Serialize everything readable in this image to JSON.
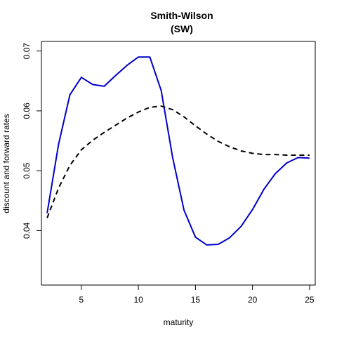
{
  "chart_data": {
    "type": "line",
    "title": [
      "Smith-Wilson",
      "(SW)"
    ],
    "xlabel": "maturity",
    "ylabel": "discount and forward rates",
    "xlim": [
      1.5,
      25.5
    ],
    "ylim": [
      0.0309,
      0.0716
    ],
    "xticks": [
      5,
      10,
      15,
      20,
      25
    ],
    "yticks": [
      0.04,
      0.05,
      0.06,
      0.07
    ],
    "ytick_labels": [
      "0.04",
      "0.05",
      "0.06",
      "0.07"
    ],
    "grid": false,
    "series": [
      {
        "style": "solid",
        "color": "#0000cc",
        "x": [
          2,
          3,
          4,
          5,
          6,
          7,
          8,
          9,
          10,
          11,
          12,
          13,
          14,
          15,
          16,
          17,
          18,
          19,
          20,
          21,
          22,
          23,
          24,
          25
        ],
        "y": [
          0.0429,
          0.0544,
          0.0627,
          0.0656,
          0.0644,
          0.0641,
          0.0659,
          0.0676,
          0.069,
          0.069,
          0.0634,
          0.0522,
          0.0434,
          0.0389,
          0.0376,
          0.0377,
          0.0388,
          0.0407,
          0.0435,
          0.0469,
          0.0495,
          0.0513,
          0.0522,
          0.0521
        ]
      },
      {
        "style": "dashed",
        "color": "#000000",
        "x": [
          2,
          3,
          4,
          5,
          6,
          7,
          8,
          9,
          10,
          11,
          12,
          13,
          14,
          15,
          16,
          17,
          18,
          19,
          20,
          21,
          22,
          23,
          24,
          25
        ],
        "y": [
          0.0421,
          0.0471,
          0.0509,
          0.0535,
          0.0551,
          0.0564,
          0.0576,
          0.0588,
          0.0598,
          0.0606,
          0.0608,
          0.0602,
          0.059,
          0.0575,
          0.0561,
          0.0549,
          0.054,
          0.0533,
          0.0529,
          0.0527,
          0.0527,
          0.0526,
          0.0526,
          0.0526
        ]
      }
    ]
  }
}
